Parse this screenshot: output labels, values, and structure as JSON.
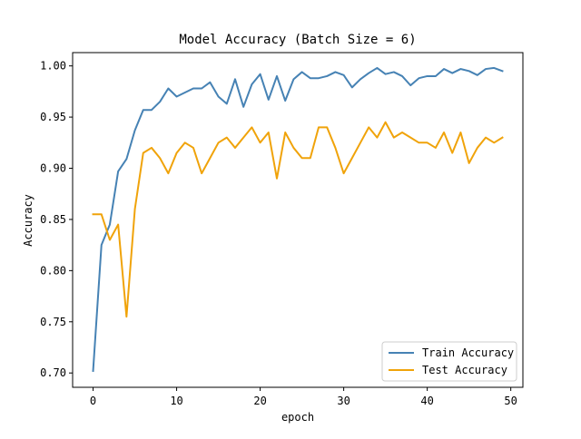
{
  "chart_data": {
    "type": "line",
    "title": "Model Accuracy (Batch Size = 6)",
    "xlabel": "epoch",
    "ylabel": "Accuracy",
    "xlim": [
      -2.45,
      51.45
    ],
    "ylim": [
      0.686,
      1.013
    ],
    "xticks": [
      0,
      10,
      20,
      30,
      40,
      50
    ],
    "yticks": [
      0.7,
      0.75,
      0.8,
      0.85,
      0.9,
      0.95,
      1.0
    ],
    "xtick_labels": [
      "0",
      "10",
      "20",
      "30",
      "40",
      "50"
    ],
    "ytick_labels": [
      "0.70",
      "0.75",
      "0.80",
      "0.85",
      "0.90",
      "0.95",
      "1.00"
    ],
    "grid": false,
    "legend_position": "lower-right",
    "x": [
      0,
      1,
      2,
      3,
      4,
      5,
      6,
      7,
      8,
      9,
      10,
      11,
      12,
      13,
      14,
      15,
      16,
      17,
      18,
      19,
      20,
      21,
      22,
      23,
      24,
      25,
      26,
      27,
      28,
      29,
      30,
      31,
      32,
      33,
      34,
      35,
      36,
      37,
      38,
      39,
      40,
      41,
      42,
      43,
      44,
      45,
      46,
      47,
      48,
      49
    ],
    "series": [
      {
        "name": "Train Accuracy",
        "color": "#4682b4",
        "values": [
          0.702,
          0.825,
          0.845,
          0.897,
          0.909,
          0.937,
          0.957,
          0.957,
          0.965,
          0.978,
          0.97,
          0.974,
          0.978,
          0.978,
          0.984,
          0.97,
          0.963,
          0.987,
          0.96,
          0.982,
          0.992,
          0.967,
          0.99,
          0.966,
          0.987,
          0.994,
          0.988,
          0.988,
          0.99,
          0.994,
          0.991,
          0.979,
          0.987,
          0.993,
          0.998,
          0.992,
          0.994,
          0.99,
          0.981,
          0.988,
          0.99,
          0.99,
          0.997,
          0.993,
          0.997,
          0.995,
          0.991,
          0.997,
          0.998,
          0.995
        ]
      },
      {
        "name": "Test Accuracy",
        "color": "#f0a30a",
        "values": [
          0.855,
          0.855,
          0.83,
          0.845,
          0.755,
          0.86,
          0.915,
          0.92,
          0.91,
          0.895,
          0.915,
          0.925,
          0.92,
          0.895,
          0.91,
          0.925,
          0.93,
          0.92,
          0.93,
          0.94,
          0.925,
          0.935,
          0.89,
          0.935,
          0.92,
          0.91,
          0.91,
          0.94,
          0.94,
          0.92,
          0.895,
          0.91,
          0.925,
          0.94,
          0.93,
          0.945,
          0.93,
          0.935,
          0.93,
          0.925,
          0.925,
          0.92,
          0.935,
          0.915,
          0.935,
          0.905,
          0.92,
          0.93,
          0.925,
          0.93
        ]
      }
    ]
  }
}
